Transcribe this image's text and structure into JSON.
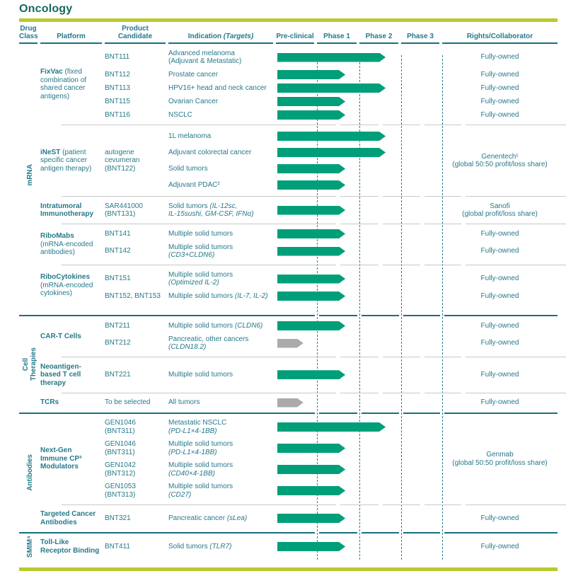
{
  "title": "Oncology",
  "colors": {
    "accent_green": "#009F79",
    "inactive_gray": "#ABABAB",
    "teal_text": "#26798A",
    "lime_bar": "#B9CA2E"
  },
  "header": {
    "drug_class": "Drug\nClass",
    "platform": "Platform",
    "candidate": "Product Candidate",
    "indication": "Indication ",
    "indication_italic": "(Targets)",
    "phases": [
      "Pre-clinical",
      "Phase 1",
      "Phase 2",
      "Phase 3"
    ],
    "rights": "Rights/Collaborator"
  },
  "phase_scale_note": "arrow u units: 0-1 Pre-clinical, 1-2 Phase 1, 2-3 Phase 2, 3-4 Phase 3",
  "sections": [
    {
      "drug_class": "mRNA",
      "groups": [
        {
          "platform_bold": "FixVac",
          "platform_rest": "(fixed combination of shared cancer antigens)",
          "rows": [
            {
              "c": "BNT111",
              "ind": [
                [
                  {
                    "t": "Advanced melanoma"
                  }
                ],
                [
                  {
                    "t": "(Adjuvant & Metastatic)"
                  }
                ]
              ],
              "u": 2.64,
              "col": "green",
              "rights": "Fully-owned"
            },
            {
              "c": "BNT112",
              "ind": [
                [
                  {
                    "t": "Prostate cancer"
                  }
                ]
              ],
              "u": 1.67,
              "col": "green",
              "rights": "Fully-owned"
            },
            {
              "c": "BNT113",
              "ind": [
                [
                  {
                    "t": "HPV16+ head and neck cancer"
                  }
                ]
              ],
              "u": 2.64,
              "col": "green",
              "rights": "Fully-owned"
            },
            {
              "c": "BNT115",
              "ind": [
                [
                  {
                    "t": "Ovarian Cancer"
                  }
                ]
              ],
              "u": 1.67,
              "col": "green",
              "rights": "Fully-owned"
            },
            {
              "c": "BNT116",
              "ind": [
                [
                  {
                    "t": "NSCLC"
                  }
                ]
              ],
              "u": 1.67,
              "col": "green",
              "rights": "Fully-owned"
            }
          ]
        },
        {
          "platform_bold": "iNeST",
          "platform_rest": "(patient specific cancer antigen therapy)",
          "candidate_group": "autogene cevumeran (BNT122)",
          "rights_group": [
            "Genentech¹",
            "(global 50:50 profit/loss share)"
          ],
          "rows": [
            {
              "ind": [
                [
                  {
                    "t": "1L melanoma"
                  }
                ]
              ],
              "u": 2.64,
              "col": "green"
            },
            {
              "ind": [
                [
                  {
                    "t": "Adjuvant colorectal cancer"
                  }
                ]
              ],
              "u": 2.64,
              "col": "green"
            },
            {
              "ind": [
                [
                  {
                    "t": "Solid tumors"
                  }
                ]
              ],
              "u": 1.67,
              "col": "green"
            },
            {
              "ind": [
                [
                  {
                    "t": "Adjuvant PDAC²"
                  }
                ]
              ],
              "u": 1.67,
              "col": "green"
            }
          ]
        },
        {
          "platform_bold": "Intratumoral Immunotherapy",
          "platform_rest": "",
          "rights_group": [
            "Sanofi",
            "(global profit/loss share)"
          ],
          "rows": [
            {
              "c": "SAR441000 (BNT131)",
              "ind": [
                [
                  {
                    "t": "Solid tumors "
                  },
                  {
                    "t": "(IL-12sc,",
                    "it": true
                  }
                ],
                [
                  {
                    "t": "IL-15sushi, GM-CSF, IFNα)",
                    "it": true
                  }
                ]
              ],
              "u": 1.67,
              "col": "green"
            }
          ]
        },
        {
          "platform_bold": "RiboMabs",
          "platform_rest": "(mRNA-encoded antibodies)",
          "rows": [
            {
              "c": "BNT141",
              "ind": [
                [
                  {
                    "t": "Multiple solid tumors"
                  }
                ]
              ],
              "u": 1.67,
              "col": "green",
              "rights": "Fully-owned"
            },
            {
              "c": "BNT142",
              "ind": [
                [
                  {
                    "t": "Multiple solid tumors"
                  }
                ],
                [
                  {
                    "t": "(CD3+CLDN6)",
                    "it": true
                  }
                ]
              ],
              "u": 1.67,
              "col": "green",
              "rights": "Fully-owned"
            }
          ]
        },
        {
          "platform_bold": "RiboCytokines",
          "platform_rest": "(mRNA-encoded cytokines)",
          "rows": [
            {
              "c": "BNT151",
              "ind": [
                [
                  {
                    "t": "Multiple solid tumors"
                  }
                ],
                [
                  {
                    "t": "(Optimized IL-2)",
                    "it": true
                  }
                ]
              ],
              "u": 1.67,
              "col": "green",
              "rights": "Fully-owned"
            },
            {
              "c": "BNT152, BNT153",
              "ind": [
                [
                  {
                    "t": "Multiple solid tumors "
                  },
                  {
                    "t": "(IL-7, IL-2)",
                    "it": true
                  }
                ]
              ],
              "u": 1.67,
              "col": "green",
              "rights": "Fully-owned"
            }
          ]
        }
      ]
    },
    {
      "drug_class": "Cell\nTherapies",
      "groups": [
        {
          "platform_bold": "CAR-T Cells",
          "platform_rest": "",
          "rows": [
            {
              "c": "BNT211",
              "ind": [
                [
                  {
                    "t": "Multiple solid tumors "
                  },
                  {
                    "t": "(CLDN6)",
                    "it": true
                  }
                ]
              ],
              "u": 1.67,
              "col": "green",
              "rights": "Fully-owned"
            },
            {
              "c": "BNT212",
              "ind": [
                [
                  {
                    "t": "Pancreatic, other cancers"
                  }
                ],
                [
                  {
                    "t": "(CLDN18.2)",
                    "it": true
                  }
                ]
              ],
              "u": 0.66,
              "col": "gray",
              "rights": "Fully-owned"
            }
          ]
        },
        {
          "platform_bold": "Neoantigen-based T cell therapy",
          "platform_rest": "",
          "rows": [
            {
              "c": "BNT221",
              "ind": [
                [
                  {
                    "t": "Multiple solid tumors"
                  }
                ]
              ],
              "u": 1.67,
              "col": "green",
              "rights": "Fully-owned"
            }
          ]
        },
        {
          "platform_bold": "TCRs",
          "platform_rest": "",
          "rows": [
            {
              "c": "To be selected",
              "ind": [
                [
                  {
                    "t": "All tumors"
                  }
                ]
              ],
              "u": 0.66,
              "col": "gray",
              "rights": "Fully-owned"
            }
          ]
        }
      ]
    },
    {
      "drug_class": "Antibodies",
      "groups": [
        {
          "platform_bold": "Next-Gen Immune CP³ Modulators",
          "platform_rest": "",
          "rights_group": [
            "Genmab",
            "(global 50:50 profit/loss share)"
          ],
          "rows": [
            {
              "c": "GEN1046 (BNT311)",
              "ind": [
                [
                  {
                    "t": "Metastatic NSCLC"
                  }
                ],
                [
                  {
                    "t": "(PD-L1×4-1BB)",
                    "it": true
                  }
                ]
              ],
              "u": 2.64,
              "col": "green"
            },
            {
              "c": "GEN1046 (BNT311)",
              "ind": [
                [
                  {
                    "t": "Multiple solid tumors"
                  }
                ],
                [
                  {
                    "t": "(PD-L1×4-1BB)",
                    "it": true
                  }
                ]
              ],
              "u": 1.67,
              "col": "green"
            },
            {
              "c": "GEN1042 (BNT312)",
              "ind": [
                [
                  {
                    "t": "Multiple solid tumors"
                  }
                ],
                [
                  {
                    "t": "(CD40×4-1BB)",
                    "it": true
                  }
                ]
              ],
              "u": 1.67,
              "col": "green"
            },
            {
              "c": "GEN1053 (BNT313)",
              "ind": [
                [
                  {
                    "t": "Multiple solid tumors"
                  }
                ],
                [
                  {
                    "t": "(CD27)",
                    "it": true
                  }
                ]
              ],
              "u": 1.67,
              "col": "green"
            }
          ]
        },
        {
          "platform_bold": "Targeted Cancer Antibodies",
          "platform_rest": "",
          "rows": [
            {
              "c": "BNT321",
              "ind": [
                [
                  {
                    "t": "Pancreatic cancer "
                  },
                  {
                    "t": "(sLea)",
                    "it": true
                  }
                ]
              ],
              "u": 1.67,
              "col": "green",
              "rights": "Fully-owned"
            }
          ]
        }
      ]
    },
    {
      "drug_class": "SMIM⁴",
      "groups": [
        {
          "platform_bold": "Toll-Like Receptor Binding",
          "platform_rest": "",
          "rows": [
            {
              "c": "BNT411",
              "ind": [
                [
                  {
                    "t": "Solid tumors "
                  },
                  {
                    "t": "(TLR7)",
                    "it": true
                  }
                ]
              ],
              "u": 1.67,
              "col": "green",
              "rights": "Fully-owned"
            }
          ]
        }
      ]
    }
  ]
}
